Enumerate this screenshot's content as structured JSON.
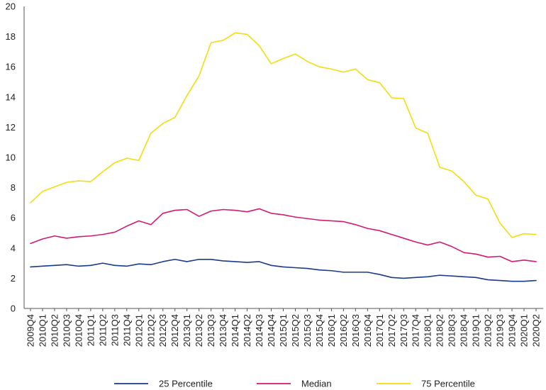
{
  "chart_data": {
    "type": "line",
    "title": "",
    "xlabel": "",
    "ylabel": "",
    "ylim": [
      0,
      20
    ],
    "yticks": [
      "0",
      "2",
      "4",
      "6",
      "8",
      "10",
      "12",
      "14",
      "16",
      "18",
      "20"
    ],
    "grid": false,
    "legend_position": "bottom",
    "x": [
      "2009Q4",
      "2010Q1",
      "2010Q2",
      "2010Q3",
      "2010Q4",
      "2011Q1",
      "2011Q2",
      "2011Q3",
      "2011Q4",
      "2012Q1",
      "2012Q2",
      "2012Q3",
      "2012Q4",
      "2013Q1",
      "2013Q2",
      "2013Q3",
      "2013Q4",
      "2014Q1",
      "2014Q2",
      "2014Q3",
      "2014Q4",
      "2015Q1",
      "2015Q2",
      "2015Q3",
      "2015Q4",
      "2016Q1",
      "2016Q2",
      "2016Q3",
      "2016Q4",
      "2017Q1",
      "2017Q2",
      "2017Q3",
      "2017Q4",
      "2018Q1",
      "2018Q2",
      "2018Q3",
      "2018Q4",
      "2019Q1",
      "2019Q2",
      "2019Q3",
      "2019Q4",
      "2020Q1",
      "2020Q2"
    ],
    "series": [
      {
        "name": "25 Percentile",
        "color": "#1a3a8c",
        "values": [
          2.75,
          2.8,
          2.85,
          2.9,
          2.8,
          2.85,
          3.0,
          2.85,
          2.8,
          2.95,
          2.9,
          3.1,
          3.25,
          3.1,
          3.25,
          3.25,
          3.15,
          3.1,
          3.05,
          3.1,
          2.85,
          2.75,
          2.7,
          2.65,
          2.55,
          2.5,
          2.4,
          2.4,
          2.4,
          2.25,
          2.05,
          2.0,
          2.05,
          2.1,
          2.2,
          2.15,
          2.1,
          2.05,
          1.9,
          1.85,
          1.8,
          1.8,
          1.85
        ]
      },
      {
        "name": "Median",
        "color": "#d61a72",
        "values": [
          4.3,
          4.6,
          4.8,
          4.65,
          4.75,
          4.8,
          4.9,
          5.05,
          5.45,
          5.8,
          5.55,
          6.3,
          6.5,
          6.55,
          6.1,
          6.45,
          6.55,
          6.5,
          6.4,
          6.6,
          6.3,
          6.2,
          6.05,
          5.95,
          5.85,
          5.8,
          5.75,
          5.55,
          5.3,
          5.15,
          4.9,
          4.65,
          4.4,
          4.2,
          4.4,
          4.1,
          3.7,
          3.6,
          3.4,
          3.45,
          3.1,
          3.2,
          3.1
        ]
      },
      {
        "name": "75 Percentile",
        "color": "#f2dd10",
        "values": [
          7.0,
          7.75,
          8.05,
          8.35,
          8.45,
          8.4,
          9.05,
          9.65,
          9.95,
          9.8,
          11.6,
          12.25,
          12.65,
          14.1,
          15.4,
          17.6,
          17.75,
          18.25,
          18.15,
          17.4,
          16.2,
          16.55,
          16.85,
          16.35,
          16.0,
          15.85,
          15.65,
          15.85,
          15.15,
          14.95,
          13.95,
          13.9,
          11.95,
          11.6,
          9.35,
          9.1,
          8.4,
          7.5,
          7.25,
          5.65,
          4.7,
          4.95,
          4.9
        ]
      }
    ]
  }
}
